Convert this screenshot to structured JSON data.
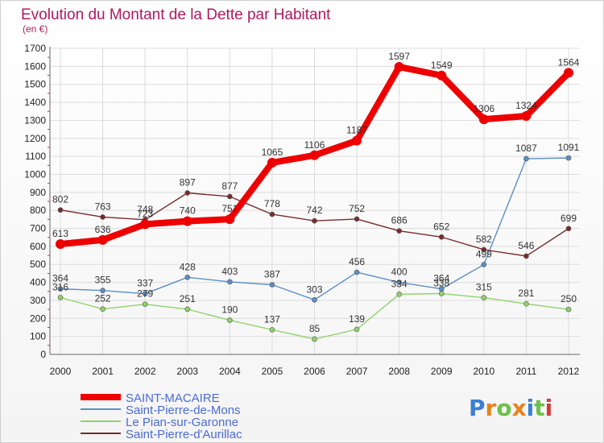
{
  "chart_data": {
    "type": "line",
    "title": "Evolution du Montant de la Dette par Habitant",
    "subtitle": "(en €)",
    "x": [
      "2000",
      "2001",
      "2002",
      "2003",
      "2004",
      "2005",
      "2006",
      "2007",
      "2008",
      "2009",
      "2010",
      "2011",
      "2012"
    ],
    "ylim": [
      0,
      1700
    ],
    "yticks": [
      0,
      100,
      200,
      300,
      400,
      500,
      600,
      700,
      800,
      900,
      1000,
      1100,
      1200,
      1300,
      1400,
      1500,
      1600,
      1700
    ],
    "grid": true,
    "legend_position": "bottom-left",
    "series": [
      {
        "name": "Saint-Pierre-d'Aurillac",
        "color": "#7a2a2a",
        "values": [
          802,
          763,
          748,
          897,
          877,
          778,
          742,
          752,
          686,
          652,
          582,
          546,
          699
        ]
      },
      {
        "name": "Le Pian-sur-Garonne",
        "color": "#8fd36b",
        "values": [
          316,
          252,
          279,
          251,
          190,
          137,
          85,
          139,
          334,
          338,
          315,
          281,
          250
        ]
      },
      {
        "name": "Saint-Pierre-de-Mons",
        "color": "#5b8fc7",
        "values": [
          364,
          355,
          337,
          428,
          403,
          387,
          303,
          456,
          400,
          364,
          499,
          1087,
          1091
        ]
      },
      {
        "name": "SAINT-MACAIRE",
        "color": "#ee0000",
        "values": [
          613,
          636,
          723,
          740,
          751,
          1065,
          1106,
          1187,
          1597,
          1549,
          1306,
          1324,
          1564
        ]
      }
    ]
  },
  "legend": [
    {
      "name": "SAINT-MACAIRE",
      "color": "#ee0000"
    },
    {
      "name": "Saint-Pierre-de-Mons",
      "color": "#5b8fc7"
    },
    {
      "name": "Le Pian-sur-Garonne",
      "color": "#8fd36b"
    },
    {
      "name": "Saint-Pierre-d'Aurillac",
      "color": "#7a2a2a"
    }
  ],
  "logo": {
    "text": "Proxiti",
    "letters": [
      "P",
      "r",
      "o",
      "x",
      "i",
      "t",
      "i"
    ],
    "letter_colors": [
      "#3a7fd6",
      "#e8821e",
      "#6cc04a",
      "#e8821e",
      "#3a7fd6",
      "#6cc04a",
      "#d43a3a"
    ]
  }
}
